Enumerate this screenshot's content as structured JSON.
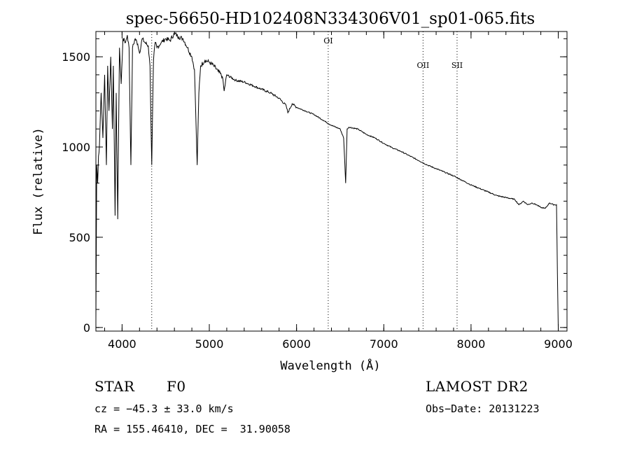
{
  "chart_data": {
    "type": "line",
    "title": "spec-56650-HD102408N334306V01_sp01-065.fits",
    "xlabel": "Wavelength (Å)",
    "ylabel": "Flux (relative)",
    "xlim": [
      3700,
      9100
    ],
    "ylim": [
      -20,
      1640
    ],
    "x_ticks": [
      4000,
      5000,
      6000,
      7000,
      8000,
      9000
    ],
    "y_ticks": [
      0,
      500,
      1000,
      1500
    ],
    "x_minor_step": 200,
    "y_minor_step": 100,
    "line_markers": [
      {
        "label": "",
        "x": 4340
      },
      {
        "label": "OI",
        "x": 6363
      },
      {
        "label": "OII",
        "x": 7450
      },
      {
        "label": "SII",
        "x": 7840
      }
    ],
    "series": [
      {
        "x": [
          3700,
          3710,
          3720,
          3730,
          3740,
          3760,
          3780,
          3800,
          3820,
          3835,
          3850,
          3870,
          3889,
          3900,
          3920,
          3933,
          3950,
          3970,
          3990,
          4010,
          4040,
          4060,
          4080,
          4101,
          4120,
          4150,
          4180,
          4200,
          4230,
          4260,
          4300,
          4320,
          4340,
          4360,
          4380,
          4400,
          4450,
          4500,
          4550,
          4600,
          4650,
          4700,
          4750,
          4800,
          4830,
          4861,
          4880,
          4900,
          4950,
          5000,
          5050,
          5100,
          5150,
          5170,
          5200,
          5300,
          5400,
          5500,
          5600,
          5700,
          5800,
          5880,
          5900,
          5950,
          6000,
          6100,
          6200,
          6300,
          6400,
          6500,
          6540,
          6563,
          6580,
          6600,
          6700,
          6800,
          6900,
          7000,
          7100,
          7200,
          7300,
          7400,
          7500,
          7600,
          7700,
          7800,
          7900,
          8000,
          8100,
          8200,
          8300,
          8400,
          8500,
          8550,
          8600,
          8650,
          8700,
          8750,
          8800,
          8850,
          8900,
          8950,
          8980,
          8990,
          9000
        ],
        "values": [
          50,
          900,
          800,
          950,
          1000,
          1300,
          1050,
          1400,
          900,
          1450,
          1200,
          1500,
          1100,
          1450,
          620,
          1300,
          600,
          1550,
          1350,
          1600,
          1580,
          1620,
          1550,
          900,
          1550,
          1600,
          1570,
          1520,
          1600,
          1580,
          1560,
          1450,
          900,
          1480,
          1580,
          1550,
          1580,
          1600,
          1590,
          1630,
          1610,
          1600,
          1550,
          1500,
          1430,
          900,
          1300,
          1450,
          1480,
          1470,
          1450,
          1420,
          1390,
          1310,
          1400,
          1370,
          1360,
          1340,
          1320,
          1300,
          1270,
          1230,
          1190,
          1240,
          1220,
          1200,
          1180,
          1150,
          1120,
          1100,
          1050,
          800,
          1100,
          1110,
          1100,
          1070,
          1050,
          1020,
          995,
          975,
          950,
          925,
          900,
          880,
          860,
          840,
          815,
          790,
          770,
          750,
          730,
          720,
          710,
          680,
          700,
          680,
          690,
          680,
          665,
          660,
          690,
          680,
          680,
          300,
          0
        ]
      }
    ]
  },
  "info": {
    "object_class": "STAR",
    "subclass": "F0",
    "survey": "LAMOST DR2",
    "redshift": "cz = −45.3 ± 33.0 km/s",
    "obs_date": "Obs−Date: 20131223",
    "coords": "RA = 155.46410, DEC =  31.90058"
  }
}
